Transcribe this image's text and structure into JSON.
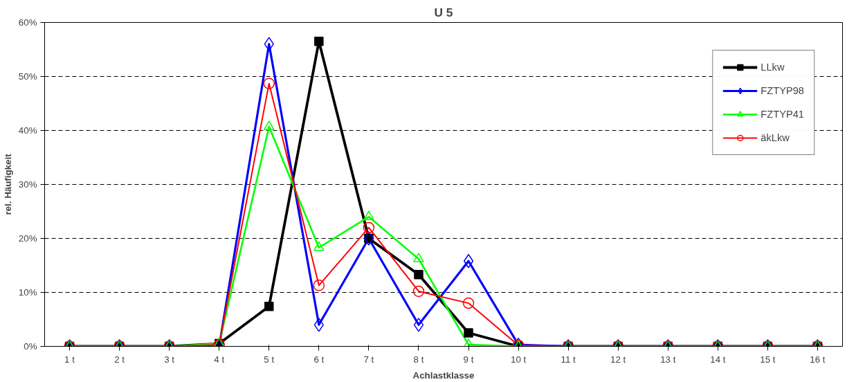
{
  "chart_data": {
    "type": "line",
    "title": "U 5",
    "xlabel": "Achlastklasse",
    "ylabel": "rel. Häufigkeit",
    "categories": [
      "1 t",
      "2 t",
      "3 t",
      "4 t",
      "5 t",
      "6 t",
      "7 t",
      "8 t",
      "9 t",
      "10 t",
      "11 t",
      "12 t",
      "13 t",
      "14 t",
      "15 t",
      "16 t"
    ],
    "series": [
      {
        "name": "LLkw",
        "color": "#000000",
        "marker": "square",
        "values": [
          0,
          0,
          0,
          0.5,
          7.4,
          56.5,
          20,
          13.3,
          2.5,
          0,
          0,
          0,
          0,
          0,
          0,
          0
        ]
      },
      {
        "name": "FZTYP98",
        "color": "#0000ff",
        "marker": "diamond",
        "values": [
          0,
          0,
          0,
          0,
          56,
          4,
          20,
          4,
          15.8,
          0.3,
          0,
          0,
          0,
          0,
          0,
          0
        ]
      },
      {
        "name": "FZTYP41",
        "color": "#00ff00",
        "marker": "triangle",
        "values": [
          0,
          0,
          0,
          0.5,
          40.7,
          18.3,
          24,
          16.2,
          0.3,
          0,
          0,
          0,
          0,
          0,
          0,
          0
        ]
      },
      {
        "name": "äkLkw",
        "color": "#ff0000",
        "marker": "circle",
        "values": [
          0,
          0,
          0,
          0.3,
          48.7,
          11.3,
          22,
          10.2,
          8,
          0.2,
          0,
          0,
          0,
          0,
          0,
          0
        ]
      }
    ],
    "ylim": [
      0,
      60
    ],
    "yticks": [
      {
        "value": 0,
        "label": "0%"
      },
      {
        "value": 10,
        "label": "10%"
      },
      {
        "value": 20,
        "label": "20%"
      },
      {
        "value": 30,
        "label": "30%"
      },
      {
        "value": 40,
        "label": "40%"
      },
      {
        "value": 50,
        "label": "50%"
      },
      {
        "value": 60,
        "label": "60%"
      }
    ],
    "grid": "y",
    "legend": "top right",
    "line_style": "solid"
  }
}
